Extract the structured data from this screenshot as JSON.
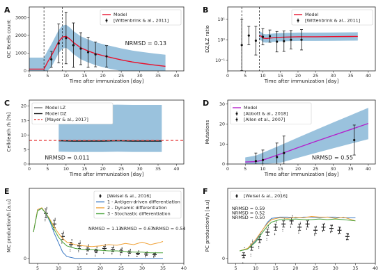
{
  "chart_data": [
    {
      "letter": "A",
      "type": "line",
      "xlabel": "Time after immunization [day]",
      "ylabel": "GC Bcells count",
      "xlim": [
        0,
        42
      ],
      "ylim": [
        0,
        3600
      ],
      "xticks": [
        0,
        5,
        10,
        15,
        20,
        25,
        30,
        35,
        40
      ],
      "yticks": [
        0,
        1000,
        2000,
        3000
      ],
      "log_y": false,
      "vlines": [
        4,
        9
      ],
      "annotation": "NRMSD = 0.13",
      "legend_loc": "upper right",
      "series": [
        {
          "name": "Model",
          "kind": "line",
          "color": "#e8112d",
          "x": [
            0,
            3,
            4,
            4.5,
            5,
            6,
            7,
            8,
            9,
            10,
            11,
            12,
            14,
            16,
            18,
            20,
            22,
            25,
            28,
            31,
            34,
            37
          ],
          "y": [
            100,
            100,
            100,
            300,
            500,
            850,
            1250,
            1650,
            1900,
            1950,
            1800,
            1600,
            1300,
            1120,
            970,
            860,
            760,
            620,
            500,
            410,
            330,
            260
          ]
        },
        {
          "name": "[Wittenbrink & al., 2011]",
          "kind": "errorbar",
          "color": "#111111",
          "x": [
            6,
            8,
            10,
            12,
            14,
            16,
            18,
            21
          ],
          "y": [
            650,
            1550,
            1850,
            1450,
            1250,
            1050,
            930,
            820
          ],
          "err": [
            450,
            1100,
            1450,
            1250,
            900,
            850,
            700,
            600
          ]
        }
      ]
    },
    {
      "letter": "B",
      "type": "line",
      "xlabel": "Time after immunization [day]",
      "ylabel": "DZ/LZ ratio",
      "xlim": [
        0,
        42
      ],
      "ylim": [
        0.03,
        40
      ],
      "xticks": [
        0,
        5,
        10,
        15,
        20,
        25,
        30,
        35,
        40
      ],
      "yticks": [
        0.1,
        1,
        10
      ],
      "ytick_labels": [
        "10⁻¹",
        "10⁰",
        "10¹"
      ],
      "log_y": true,
      "vlines": [
        4,
        9
      ],
      "annotation": "",
      "legend_loc": "upper right",
      "series": [
        {
          "name": "Model",
          "kind": "line",
          "color": "#e8112d",
          "x": [
            9,
            9.5,
            10,
            11,
            12,
            14,
            17,
            20,
            25,
            30,
            35,
            37
          ],
          "y": [
            1.6,
            1.5,
            1.2,
            1.15,
            1.2,
            1.3,
            1.35,
            1.4,
            1.4,
            1.42,
            1.44,
            1.45
          ]
        },
        {
          "name": "[Wittenbrink & al., 2011]",
          "kind": "errorbar",
          "color": "#111111",
          "x": [
            4,
            6,
            8,
            10,
            12,
            14,
            16,
            18,
            21
          ],
          "y": [
            0.55,
            1.6,
            0.9,
            1.4,
            1.5,
            0.8,
            0.85,
            1.0,
            1.0
          ],
          "err_log": [
            1.25,
            0.45,
            0.7,
            0.4,
            0.3,
            0.5,
            0.5,
            0.45,
            0.5
          ]
        }
      ]
    },
    {
      "letter": "C",
      "type": "line",
      "xlabel": "Time after immunization [day]",
      "ylabel": "Celldeath /h [%]",
      "xlim": [
        0,
        42
      ],
      "ylim": [
        0,
        22
      ],
      "xticks": [
        0,
        5,
        10,
        15,
        20,
        25,
        30,
        35,
        40
      ],
      "yticks": [
        0,
        5,
        10,
        15,
        20
      ],
      "log_y": false,
      "vlines": [],
      "annotation": "NRMSD = 0.011",
      "legend_loc": "upper left",
      "series": [
        {
          "name": "Model LZ",
          "kind": "line",
          "color": "#777777",
          "x": [
            8,
            12,
            16,
            20,
            24,
            28,
            32,
            36
          ],
          "y": [
            8.1,
            8.0,
            8.0,
            8.0,
            8.1,
            8.0,
            8.0,
            8.0
          ]
        },
        {
          "name": "Model DZ",
          "kind": "line",
          "color": "#111111",
          "x": [
            8,
            12,
            16,
            20,
            24,
            28,
            32,
            36
          ],
          "y": [
            8.0,
            7.9,
            7.9,
            7.9,
            8.0,
            7.9,
            7.9,
            7.9
          ]
        },
        {
          "name": "[Mayer & al., 2017]",
          "kind": "dashed",
          "color": "#e84a4a",
          "x": [
            0,
            42
          ],
          "y": [
            8.1,
            8.1
          ]
        }
      ]
    },
    {
      "letter": "D",
      "type": "line",
      "xlabel": "Time after immunization [day]",
      "ylabel": "Mutations",
      "xlim": [
        0,
        42
      ],
      "ylim": [
        0,
        32
      ],
      "xticks": [
        0,
        5,
        10,
        15,
        20,
        25,
        30,
        35,
        40
      ],
      "yticks": [
        0,
        10,
        20,
        30
      ],
      "log_y": false,
      "vlines": [],
      "annotation": "NRMSD = 0.55",
      "legend_loc": "upper left",
      "series": [
        {
          "name": "Model",
          "kind": "line",
          "color": "#b41fcb",
          "x": [
            5,
            8,
            10,
            15,
            20,
            25,
            30,
            35,
            40
          ],
          "y": [
            1,
            1.2,
            2,
            5,
            8.2,
            11.3,
            14.3,
            17.3,
            20.3
          ]
        },
        {
          "name": "[Abbott & al., 2018]",
          "kind": "errorbar",
          "color": "#111111",
          "x": [
            8,
            10,
            14,
            16
          ],
          "y": [
            1.5,
            2.0,
            3.5,
            5.5
          ],
          "err": [
            4,
            5,
            7,
            8.5
          ]
        },
        {
          "name": "[Allen et al., 2007]",
          "kind": "errorbar",
          "color": "#111111",
          "x": [
            36
          ],
          "y": [
            12
          ],
          "err": [
            7.5
          ]
        }
      ]
    },
    {
      "letter": "E",
      "type": "line",
      "xlabel": "",
      "ylabel": "MC production/h [a.u]",
      "xlim": [
        3,
        40
      ],
      "ylim": [
        -0.08,
        1.12
      ],
      "xticks": [
        5,
        10,
        15,
        20,
        25,
        30,
        35,
        40
      ],
      "yticks": [
        0
      ],
      "log_y": false,
      "vlines": [],
      "legend_loc": "upper right",
      "nrmsd": [
        {
          "text": "NRMSD = 1.13",
          "color": "#3a78c3"
        },
        {
          "text": "NRMSD = 0.67",
          "color": "#f0a135"
        },
        {
          "text": "NRMSD = 0.54",
          "color": "#4aa43b"
        }
      ],
      "series": [
        {
          "name": "[Weisel & al., 2016]",
          "kind": "errorbar",
          "color": "#111111",
          "x": [
            7,
            9,
            11,
            13,
            15,
            17,
            19,
            21,
            23,
            25,
            27,
            29,
            31,
            33
          ],
          "y": [
            0.72,
            0.55,
            0.35,
            0.22,
            0.2,
            0.15,
            0.12,
            0.16,
            0.14,
            0.12,
            0.1,
            0.08,
            0.07,
            0.06
          ],
          "err": [
            0.07,
            0.06,
            0.05,
            0.04,
            0.04,
            0.03,
            0.03,
            0.03,
            0.03,
            0.03,
            0.02,
            0.02,
            0.02,
            0.02
          ]
        },
        {
          "name": "1 - Antigen-driven differentiation",
          "kind": "line",
          "color": "#3a78c3",
          "x": [
            4,
            5,
            6,
            7,
            8,
            9,
            10,
            11,
            12,
            14,
            16,
            18,
            20,
            25,
            30,
            35
          ],
          "y": [
            0.42,
            0.78,
            0.8,
            0.72,
            0.58,
            0.4,
            0.25,
            0.1,
            0.03,
            0.0,
            0.0,
            0.0,
            0.0,
            0.0,
            0.0,
            0.0
          ]
        },
        {
          "name": "2 - Dynamic differentiation",
          "kind": "line",
          "color": "#f0a135",
          "x": [
            4,
            5,
            6,
            7,
            8,
            9,
            10,
            11,
            12,
            14,
            16,
            18,
            20,
            22,
            24,
            26,
            28,
            30,
            32,
            34,
            35
          ],
          "y": [
            0.42,
            0.78,
            0.81,
            0.72,
            0.62,
            0.5,
            0.4,
            0.32,
            0.26,
            0.22,
            0.2,
            0.19,
            0.2,
            0.22,
            0.21,
            0.24,
            0.22,
            0.26,
            0.22,
            0.25,
            0.27
          ]
        },
        {
          "name": "3 - Stochastic differentiation",
          "kind": "line",
          "color": "#4aa43b",
          "x": [
            4,
            5,
            6,
            7,
            8,
            9,
            10,
            11,
            12,
            14,
            16,
            18,
            20,
            22,
            24,
            26,
            28,
            30,
            32,
            34,
            35
          ],
          "y": [
            0.42,
            0.76,
            0.8,
            0.72,
            0.6,
            0.46,
            0.34,
            0.26,
            0.2,
            0.16,
            0.14,
            0.14,
            0.13,
            0.12,
            0.12,
            0.11,
            0.1,
            0.1,
            0.09,
            0.09,
            0.09
          ]
        }
      ]
    },
    {
      "letter": "F",
      "type": "line",
      "xlabel": "",
      "ylabel": "PC production\\h [a.u]",
      "xlim": [
        3,
        40
      ],
      "ylim": [
        -0.08,
        1.12
      ],
      "xticks": [
        5,
        10,
        15,
        20,
        25,
        30,
        35,
        40
      ],
      "yticks": [
        0
      ],
      "log_y": false,
      "vlines": [],
      "legend_loc": "upper left",
      "nrmsd": [
        {
          "text": "NRMSD = 0.59",
          "color": "#3a78c3"
        },
        {
          "text": "NRMSD = 0.52",
          "color": "#f0a135"
        },
        {
          "text": "NRMSD = 0.50",
          "color": "#4aa43b"
        }
      ],
      "series": [
        {
          "name": "[Weisel & al., 2016]",
          "kind": "errorbar",
          "color": "#111111",
          "x": [
            7,
            9,
            11,
            13,
            15,
            17,
            19,
            21,
            23,
            25,
            27,
            29,
            31,
            33
          ],
          "y": [
            0.05,
            0.18,
            0.3,
            0.42,
            0.5,
            0.55,
            0.6,
            0.5,
            0.55,
            0.45,
            0.5,
            0.48,
            0.45,
            0.35
          ],
          "err": [
            0.04,
            0.05,
            0.05,
            0.05,
            0.05,
            0.05,
            0.05,
            0.05,
            0.05,
            0.05,
            0.05,
            0.05,
            0.05,
            0.05
          ]
        },
        {
          "name": "1 - Antigen-driven differentiation",
          "kind": "line",
          "color": "#3a78c3",
          "x": [
            6,
            8,
            10,
            12,
            13,
            14,
            16,
            18,
            20,
            22,
            24,
            26,
            28,
            30,
            32,
            35
          ],
          "y": [
            0.12,
            0.15,
            0.28,
            0.48,
            0.58,
            0.64,
            0.66,
            0.66,
            0.65,
            0.66,
            0.66,
            0.65,
            0.66,
            0.66,
            0.65,
            0.65
          ]
        },
        {
          "name": "2 - Dynamic differentiation",
          "kind": "line",
          "color": "#f0a135",
          "x": [
            6,
            8,
            10,
            12,
            13,
            14,
            16,
            18,
            20,
            22,
            24,
            26,
            28,
            30,
            32,
            35
          ],
          "y": [
            0.12,
            0.16,
            0.3,
            0.48,
            0.56,
            0.62,
            0.65,
            0.64,
            0.66,
            0.65,
            0.67,
            0.66,
            0.66,
            0.64,
            0.66,
            0.6
          ]
        },
        {
          "name": "3 - Stochastic differentiation",
          "kind": "line",
          "color": "#4aa43b",
          "x": [
            6,
            8,
            10,
            12,
            13,
            14,
            16,
            18,
            20,
            22,
            24,
            26,
            28,
            30,
            32,
            35
          ],
          "y": [
            0.12,
            0.15,
            0.26,
            0.44,
            0.52,
            0.58,
            0.62,
            0.62,
            0.63,
            0.62,
            0.62,
            0.63,
            0.62,
            0.63,
            0.62,
            0.6
          ]
        }
      ]
    }
  ]
}
